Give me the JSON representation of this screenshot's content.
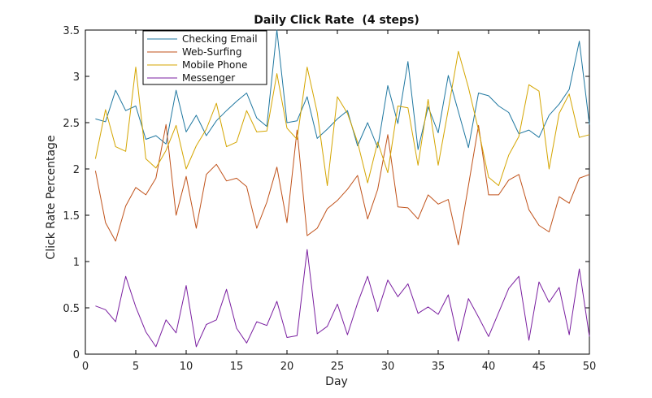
{
  "chart_data": {
    "type": "line",
    "title": "Daily Click Rate  (4 steps)",
    "xlabel": "Day",
    "ylabel": "Click Rate Percentage",
    "xlim": [
      0,
      50
    ],
    "ylim": [
      0,
      3.5
    ],
    "xticks": [
      0,
      5,
      10,
      15,
      20,
      25,
      30,
      35,
      40,
      45,
      50
    ],
    "yticks": [
      0,
      0.5,
      1,
      1.5,
      2,
      2.5,
      3,
      3.5
    ],
    "xtick_labels": [
      "0",
      "5",
      "10",
      "15",
      "20",
      "25",
      "30",
      "35",
      "40",
      "45",
      "50"
    ],
    "ytick_labels": [
      "0",
      "0.5",
      "1",
      "1.5",
      "2",
      "2.5",
      "3",
      "3.5"
    ],
    "grid": false,
    "legend_position": "top-left",
    "x": [
      1,
      2,
      3,
      4,
      5,
      6,
      7,
      8,
      9,
      10,
      11,
      12,
      13,
      14,
      15,
      16,
      17,
      18,
      19,
      20,
      21,
      22,
      23,
      24,
      25,
      26,
      27,
      28,
      29,
      30,
      31,
      32,
      33,
      34,
      35,
      36,
      37,
      38,
      39,
      40,
      41,
      42,
      43,
      44,
      45,
      46,
      47,
      48,
      49,
      50
    ],
    "series": [
      {
        "name": "Checking Email",
        "color": "#1f77a0",
        "values": [
          2.54,
          2.51,
          2.85,
          2.63,
          2.68,
          2.32,
          2.36,
          2.27,
          2.85,
          2.4,
          2.58,
          2.36,
          2.52,
          2.63,
          2.73,
          2.82,
          2.55,
          2.46,
          3.5,
          2.5,
          2.52,
          2.78,
          2.33,
          2.43,
          2.54,
          2.63,
          2.25,
          2.5,
          2.23,
          2.9,
          2.49,
          3.16,
          2.21,
          2.67,
          2.39,
          3.01,
          2.62,
          2.23,
          2.82,
          2.79,
          2.68,
          2.61,
          2.38,
          2.42,
          2.34,
          2.58,
          2.7,
          2.86,
          3.38,
          2.48
        ]
      },
      {
        "name": "Web-Surfing",
        "color": "#c0521a",
        "values": [
          1.98,
          1.42,
          1.22,
          1.6,
          1.8,
          1.72,
          1.9,
          2.48,
          1.5,
          1.92,
          1.36,
          1.94,
          2.05,
          1.87,
          1.9,
          1.81,
          1.36,
          1.64,
          2.02,
          1.42,
          2.42,
          1.28,
          1.36,
          1.57,
          1.66,
          1.78,
          1.93,
          1.46,
          1.78,
          2.37,
          1.59,
          1.58,
          1.46,
          1.72,
          1.62,
          1.67,
          1.18,
          1.82,
          2.47,
          1.72,
          1.72,
          1.88,
          1.94,
          1.56,
          1.39,
          1.32,
          1.7,
          1.63,
          1.9,
          1.94
        ]
      },
      {
        "name": "Mobile Phone",
        "color": "#d4a500",
        "values": [
          2.11,
          2.64,
          2.24,
          2.19,
          3.1,
          2.11,
          2.01,
          2.2,
          2.47,
          2.0,
          2.25,
          2.43,
          2.71,
          2.24,
          2.29,
          2.63,
          2.4,
          2.41,
          3.03,
          2.44,
          2.32,
          3.1,
          2.61,
          1.82,
          2.78,
          2.6,
          2.29,
          1.85,
          2.29,
          1.96,
          2.68,
          2.66,
          2.04,
          2.75,
          2.04,
          2.64,
          3.27,
          2.88,
          2.42,
          1.91,
          1.82,
          2.15,
          2.35,
          2.91,
          2.84,
          2.0,
          2.6,
          2.81,
          2.34,
          2.37
        ]
      },
      {
        "name": "Messenger",
        "color": "#7a1fa0",
        "values": [
          0.52,
          0.48,
          0.35,
          0.84,
          0.51,
          0.24,
          0.08,
          0.37,
          0.23,
          0.74,
          0.08,
          0.32,
          0.37,
          0.7,
          0.28,
          0.12,
          0.35,
          0.31,
          0.57,
          0.18,
          0.2,
          1.13,
          0.22,
          0.3,
          0.54,
          0.21,
          0.55,
          0.84,
          0.46,
          0.8,
          0.62,
          0.76,
          0.44,
          0.51,
          0.43,
          0.64,
          0.14,
          0.6,
          0.4,
          0.19,
          0.45,
          0.71,
          0.84,
          0.15,
          0.78,
          0.56,
          0.72,
          0.21,
          0.92,
          0.19
        ]
      }
    ]
  }
}
